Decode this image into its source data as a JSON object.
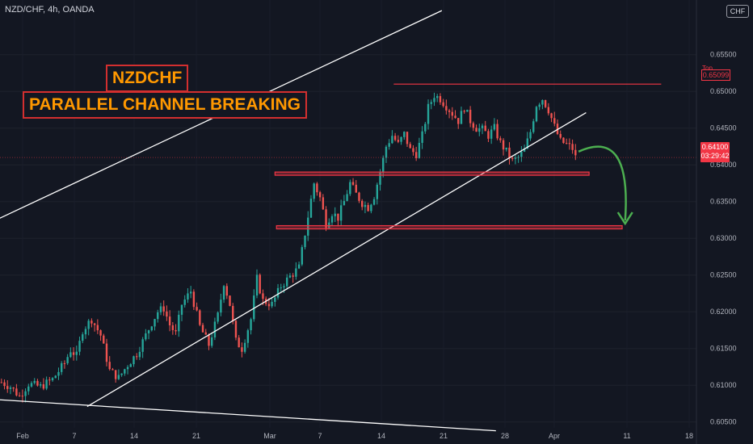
{
  "header": {
    "symbol_title": "NZD/CHF, 4h, OANDA",
    "currency_badge": "CHF"
  },
  "annotations": {
    "banner_line1": "NZDCHF",
    "banner_line2": "PARALLEL CHANNEL BREAKING"
  },
  "price_tags": {
    "current_price": "0.64100",
    "countdown": "03:29:42",
    "top_label": "Top",
    "top_price": "0.65099"
  },
  "colors": {
    "background": "#131722",
    "bull": "#26a69a",
    "bear": "#ef5350",
    "channel_line": "#ffffff",
    "zone": "#f23645",
    "arrow": "#4caf50",
    "banner_text": "#ff9800"
  },
  "chart_data": {
    "type": "candlestick",
    "title": "NZD/CHF, 4h, OANDA",
    "interval": "4h",
    "y_axis": {
      "side": "right",
      "range": [
        0.60416,
        0.66084
      ],
      "ticks": [
        "0.60500",
        "0.61000",
        "0.61500",
        "0.62000",
        "0.62500",
        "0.63000",
        "0.63500",
        "0.64000",
        "0.64500",
        "0.65000",
        "0.65500"
      ]
    },
    "x_axis": {
      "labels": [
        "Feb",
        "7",
        "14",
        "21",
        "Mar",
        "7",
        "14",
        "21",
        "28",
        "Apr",
        "11",
        "18"
      ]
    },
    "price_path": [
      [
        0,
        0.6104
      ],
      [
        3,
        0.6098
      ],
      [
        6,
        0.6085
      ],
      [
        9,
        0.6102
      ],
      [
        13,
        0.6098
      ],
      [
        17,
        0.6108
      ],
      [
        21,
        0.613
      ],
      [
        23,
        0.6148
      ],
      [
        25,
        0.614
      ],
      [
        27,
        0.6175
      ],
      [
        30,
        0.619
      ],
      [
        33,
        0.6168
      ],
      [
        36,
        0.612
      ],
      [
        39,
        0.611
      ],
      [
        42,
        0.6128
      ],
      [
        45,
        0.6143
      ],
      [
        48,
        0.6168
      ],
      [
        50,
        0.6185
      ],
      [
        52,
        0.62
      ],
      [
        54,
        0.6205
      ],
      [
        56,
        0.6182
      ],
      [
        58,
        0.617
      ],
      [
        60,
        0.621
      ],
      [
        63,
        0.6228
      ],
      [
        66,
        0.618
      ],
      [
        69,
        0.6155
      ],
      [
        72,
        0.6195
      ],
      [
        74,
        0.624
      ],
      [
        76,
        0.621
      ],
      [
        78,
        0.616
      ],
      [
        80,
        0.615
      ],
      [
        83,
        0.619
      ],
      [
        85,
        0.6245
      ],
      [
        87,
        0.6215
      ],
      [
        90,
        0.621
      ],
      [
        93,
        0.6235
      ],
      [
        96,
        0.6248
      ],
      [
        99,
        0.626
      ],
      [
        102,
        0.633
      ],
      [
        104,
        0.6375
      ],
      [
        106,
        0.6355
      ],
      [
        108,
        0.632
      ],
      [
        110,
        0.6335
      ],
      [
        112,
        0.6328
      ],
      [
        114,
        0.635
      ],
      [
        116,
        0.6375
      ],
      [
        118,
        0.636
      ],
      [
        120,
        0.6348
      ],
      [
        122,
        0.6342
      ],
      [
        124,
        0.6358
      ],
      [
        126,
        0.639
      ],
      [
        128,
        0.6425
      ],
      [
        130,
        0.644
      ],
      [
        132,
        0.6428
      ],
      [
        134,
        0.6442
      ],
      [
        136,
        0.642
      ],
      [
        138,
        0.6415
      ],
      [
        140,
        0.644
      ],
      [
        142,
        0.6478
      ],
      [
        144,
        0.6495
      ],
      [
        146,
        0.649
      ],
      [
        148,
        0.648
      ],
      [
        150,
        0.647
      ],
      [
        152,
        0.646
      ],
      [
        154,
        0.6478
      ],
      [
        156,
        0.646
      ],
      [
        158,
        0.645
      ],
      [
        160,
        0.6448
      ],
      [
        162,
        0.644
      ],
      [
        164,
        0.645
      ],
      [
        166,
        0.643
      ],
      [
        168,
        0.6418
      ],
      [
        170,
        0.6405
      ],
      [
        172,
        0.641
      ],
      [
        174,
        0.642
      ],
      [
        176,
        0.6445
      ],
      [
        178,
        0.6482
      ],
      [
        180,
        0.649
      ],
      [
        182,
        0.6475
      ],
      [
        184,
        0.6452
      ],
      [
        186,
        0.6432
      ],
      [
        188,
        0.6428
      ],
      [
        190,
        0.6422
      ],
      [
        191,
        0.641
      ]
    ],
    "channel_upper": [
      [
        -70,
        0.6193
      ],
      [
        147,
        0.661
      ]
    ],
    "channel_lower": [
      [
        29,
        0.6071
      ],
      [
        195,
        0.6471
      ]
    ],
    "lower_support_line": [
      [
        -70,
        0.6098
      ],
      [
        165,
        0.6038
      ]
    ],
    "zones": [
      {
        "price": 0.6388,
        "from": 91.5,
        "to": 196
      },
      {
        "price": 0.6315,
        "from": 92,
        "to": 207
      }
    ],
    "top_line": {
      "price": 0.65099,
      "from": 131,
      "to": 220,
      "label": "Top"
    },
    "current_price": 0.641,
    "projection_arrow": {
      "from": [
        192.5,
        0.6418
      ],
      "to": [
        208,
        0.632
      ]
    }
  }
}
